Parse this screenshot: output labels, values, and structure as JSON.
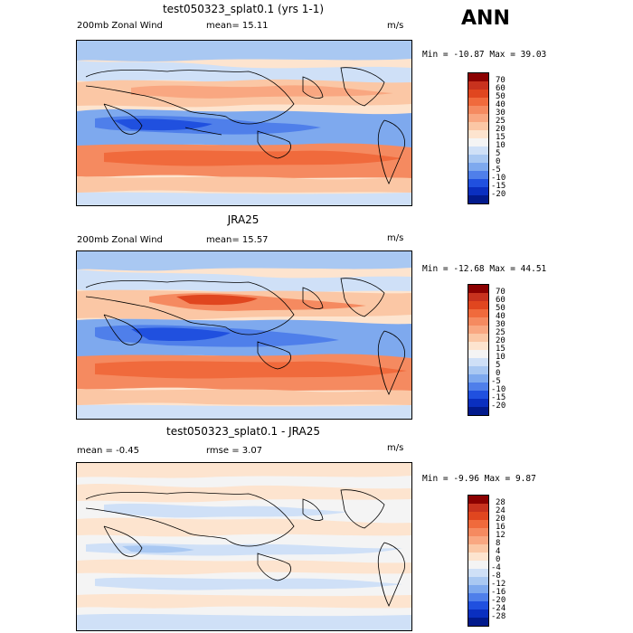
{
  "season": "ANN",
  "panels": [
    {
      "title": "test050323_splat0.1 (yrs 1-1)",
      "left_label": "200mb Zonal Wind",
      "mean_label": "mean=  15.11",
      "units": "m/s",
      "minmax": "Min = -10.87 Max =  39.03",
      "colorbar": {
        "labels": [
          "70",
          "60",
          "50",
          "40",
          "30",
          "25",
          "20",
          "15",
          "10",
          "5",
          "0",
          "-5",
          "-10",
          "-15",
          "-20"
        ],
        "colors": [
          "#8b0000",
          "#c8321e",
          "#e0461f",
          "#f06a3c",
          "#f58a60",
          "#f9a781",
          "#fbc7a5",
          "#fde4cf",
          "#f4f4f4",
          "#cfe0f7",
          "#a9c8f2",
          "#7ea9ee",
          "#4f7fea",
          "#2050df",
          "#0a2fc0",
          "#021a8c"
        ]
      }
    },
    {
      "title": "JRA25",
      "left_label": "200mb Zonal Wind",
      "mean_label": "mean=  15.57",
      "units": "m/s",
      "minmax": "Min = -12.68 Max =  44.51",
      "colorbar": {
        "labels": [
          "70",
          "60",
          "50",
          "40",
          "30",
          "25",
          "20",
          "15",
          "10",
          "5",
          "0",
          "-5",
          "-10",
          "-15",
          "-20"
        ],
        "colors": [
          "#8b0000",
          "#c8321e",
          "#e0461f",
          "#f06a3c",
          "#f58a60",
          "#f9a781",
          "#fbc7a5",
          "#fde4cf",
          "#f4f4f4",
          "#cfe0f7",
          "#a9c8f2",
          "#7ea9ee",
          "#4f7fea",
          "#2050df",
          "#0a2fc0",
          "#021a8c"
        ]
      }
    },
    {
      "title": "test050323_splat0.1 - JRA25",
      "left_label": "mean =   -0.45",
      "mean_label": "rmse =    3.07",
      "units": "m/s",
      "minmax": "Min = -9.96 Max =   9.87",
      "colorbar": {
        "labels": [
          "28",
          "24",
          "20",
          "16",
          "12",
          "8",
          "4",
          "0",
          "-4",
          "-8",
          "-12",
          "-16",
          "-20",
          "-24",
          "-28"
        ],
        "colors": [
          "#8b0000",
          "#c8321e",
          "#e0461f",
          "#f06a3c",
          "#f58a60",
          "#f9a781",
          "#fbc7a5",
          "#fde4cf",
          "#f4f4f4",
          "#cfe0f7",
          "#a9c8f2",
          "#7ea9ee",
          "#4f7fea",
          "#2050df",
          "#0a2fc0",
          "#021a8c"
        ]
      }
    }
  ]
}
